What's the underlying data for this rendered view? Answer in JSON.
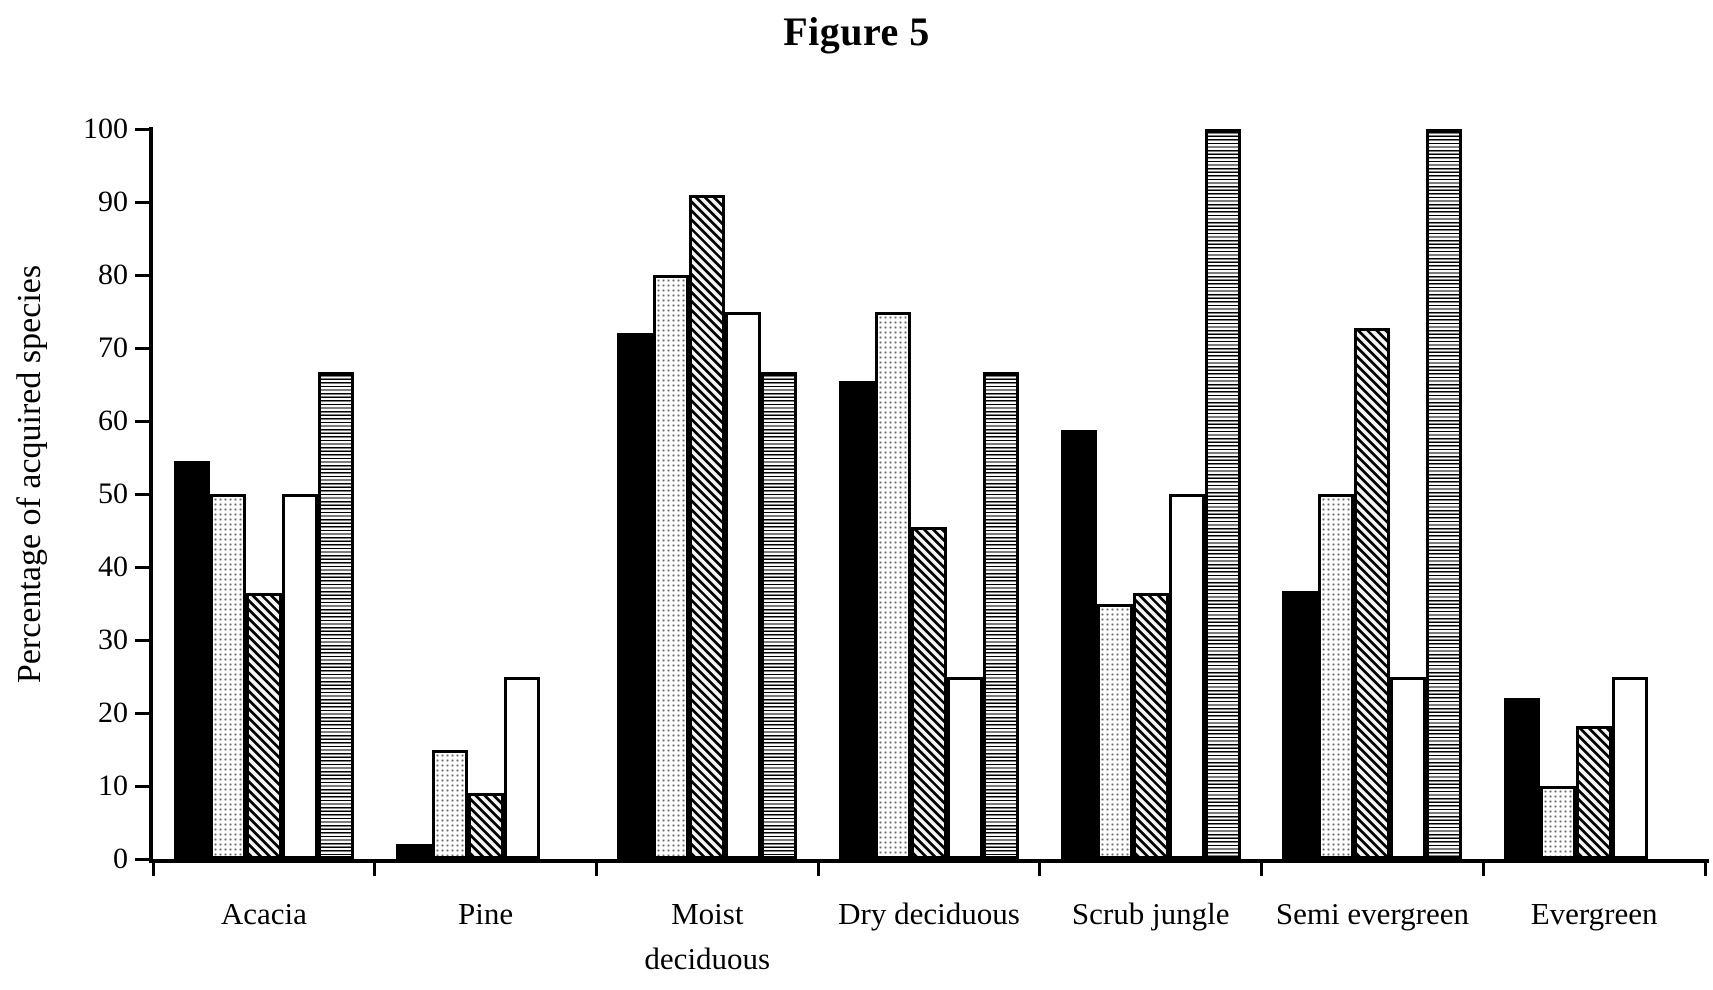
{
  "figure_label": "Figure 5",
  "colors": {
    "ink": "#000000",
    "background": "#ffffff"
  },
  "chart_data": {
    "type": "bar",
    "title": "Figure 5",
    "xlabel": "",
    "ylabel": "Percentage of acquired species",
    "ylim": [
      0,
      100
    ],
    "yticks": [
      0,
      10,
      20,
      30,
      40,
      50,
      60,
      70,
      80,
      90,
      100
    ],
    "grid": false,
    "legend_position": "none",
    "categories": [
      "Acacia",
      "Pine",
      "Moist\ndeciduous",
      "Dry deciduous",
      "Scrub jungle",
      "Semi evergreen",
      "Evergreen"
    ],
    "series": [
      {
        "name": "solid-black-bar",
        "pattern": "solid-black",
        "values": [
          54.5,
          2,
          72,
          65.5,
          58.8,
          36.7,
          22
        ]
      },
      {
        "name": "fine-dots-bar",
        "pattern": "fine-dots",
        "values": [
          50,
          15,
          80,
          75,
          35,
          50,
          10
        ]
      },
      {
        "name": "diagonal-hatch-bar",
        "pattern": "diagonal-hatch",
        "values": [
          36.4,
          9.1,
          90.9,
          45.5,
          36.4,
          72.7,
          18.2
        ]
      },
      {
        "name": "plain-white-bar",
        "pattern": "plain-white",
        "values": [
          50,
          25,
          75,
          25,
          50,
          25,
          25
        ]
      },
      {
        "name": "horizontal-stripes-bar",
        "pattern": "horizontal-stripes",
        "values": [
          66.7,
          null,
          66.7,
          66.7,
          100,
          100,
          null
        ]
      }
    ]
  }
}
